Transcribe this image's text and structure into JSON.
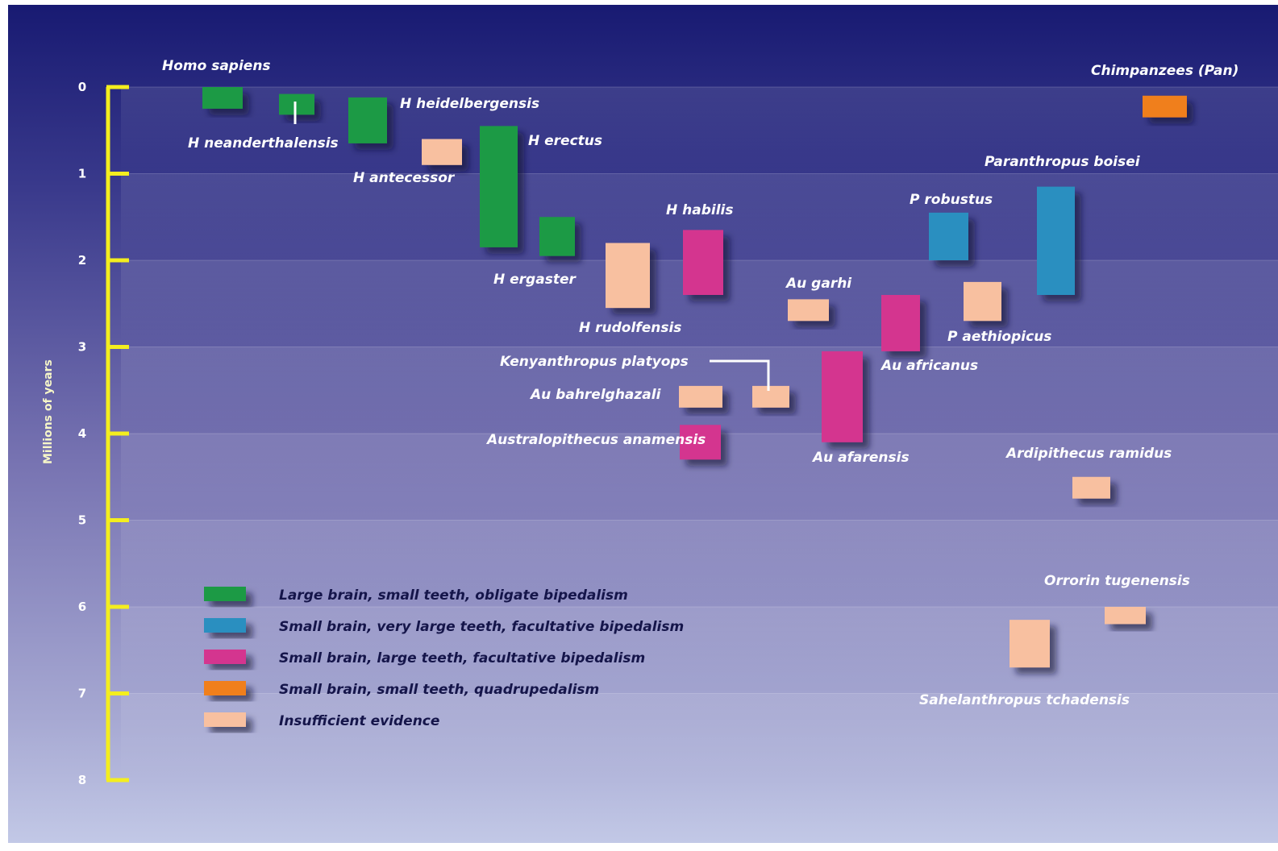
{
  "chart_data": {
    "type": "range-bar",
    "ylabel": "Millions of years",
    "ylim": [
      0,
      8
    ],
    "yticks": [
      "0",
      "1",
      "2",
      "3",
      "4",
      "5",
      "6",
      "7",
      "8"
    ],
    "y_inverted": true,
    "grid": true,
    "categories": [
      {
        "key": "large",
        "label": "Large brain, small teeth, obligate bipedalism",
        "color": "#1f9a44"
      },
      {
        "key": "robust",
        "label": "Small brain, very large teeth, facultative bipedalism",
        "color": "#2a8fc0"
      },
      {
        "key": "ape",
        "label": "Small brain, large teeth, facultative bipedalism",
        "color": "#d4358f"
      },
      {
        "key": "quad",
        "label": "Small brain, small teeth, quadrupedalism",
        "color": "#f07f1a"
      },
      {
        "key": "insuf",
        "label": "Insufficient evidence",
        "color": "#f8c0a0"
      }
    ],
    "species": [
      {
        "name": "Homo sapiens",
        "category": "large",
        "start": 0.0,
        "end": 0.25
      },
      {
        "name": "H neanderthalensis",
        "category": "large",
        "start": 0.08,
        "end": 0.32
      },
      {
        "name": "H heidelbergensis",
        "category": "large",
        "start": 0.12,
        "end": 0.65
      },
      {
        "name": "H antecessor",
        "category": "insuf",
        "start": 0.6,
        "end": 0.9
      },
      {
        "name": "H erectus",
        "category": "large",
        "start": 0.45,
        "end": 1.85
      },
      {
        "name": "H ergaster",
        "category": "large",
        "start": 1.5,
        "end": 1.95
      },
      {
        "name": "H rudolfensis",
        "category": "insuf",
        "start": 1.8,
        "end": 2.55
      },
      {
        "name": "H habilis",
        "category": "ape",
        "start": 1.65,
        "end": 2.4
      },
      {
        "name": "Au garhi",
        "category": "insuf",
        "start": 2.45,
        "end": 2.7
      },
      {
        "name": "Kenyanthropus platyops",
        "category": "insuf",
        "start": 3.45,
        "end": 3.7
      },
      {
        "name": "Au bahrelghazali",
        "category": "insuf",
        "start": 3.45,
        "end": 3.7
      },
      {
        "name": "Australopithecus anamensis",
        "category": "ape",
        "start": 3.9,
        "end": 4.3
      },
      {
        "name": "Au afarensis",
        "category": "ape",
        "start": 3.05,
        "end": 4.1
      },
      {
        "name": "Au africanus",
        "category": "ape",
        "start": 2.4,
        "end": 3.05
      },
      {
        "name": "P robustus",
        "category": "robust",
        "start": 1.45,
        "end": 2.0
      },
      {
        "name": "P aethiopicus",
        "category": "insuf",
        "start": 2.25,
        "end": 2.7
      },
      {
        "name": "Paranthropus boisei",
        "category": "robust",
        "start": 1.15,
        "end": 2.4
      },
      {
        "name": "Chimpanzees (Pan)",
        "category": "quad",
        "start": 0.1,
        "end": 0.35
      },
      {
        "name": "Ardipithecus ramidus",
        "category": "insuf",
        "start": 4.5,
        "end": 4.75
      },
      {
        "name": "Orrorin tugenensis",
        "category": "insuf",
        "start": 6.0,
        "end": 6.2
      },
      {
        "name": "Sahelanthropus tchadensis",
        "category": "insuf",
        "start": 6.15,
        "end": 6.7
      }
    ]
  }
}
